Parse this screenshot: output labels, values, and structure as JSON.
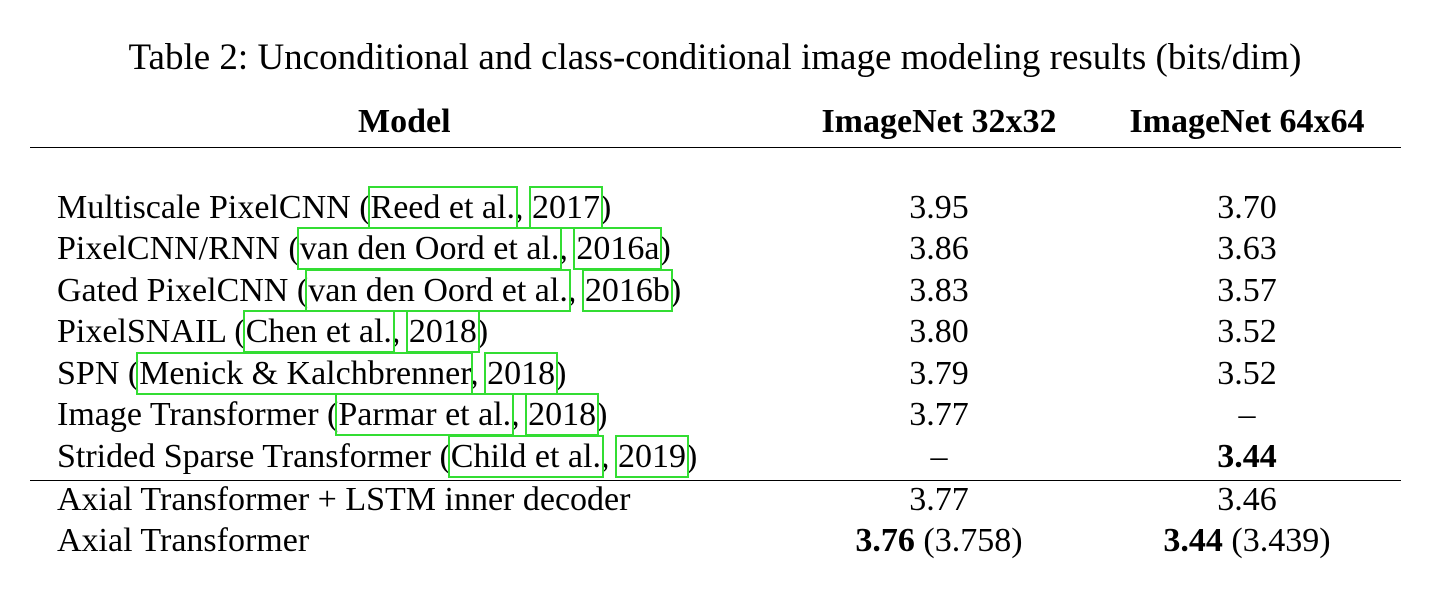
{
  "caption": "Table 2: Unconditional and class-conditional image modeling results (bits/dim)",
  "headers": {
    "model": "Model",
    "imagenet32": "ImageNet 32x32",
    "imagenet64": "ImageNet 64x64"
  },
  "rows": [
    {
      "name": "Multiscale PixelCNN (",
      "cite_authors": "Reed et al.",
      "sep": ", ",
      "cite_year": "2017",
      "close": ")",
      "in32": "3.95",
      "in64": "3.70"
    },
    {
      "name": "PixelCNN/RNN (",
      "cite_authors": "van den Oord et al.",
      "sep": ", ",
      "cite_year": "2016a",
      "close": ")",
      "in32": "3.86",
      "in64": "3.63"
    },
    {
      "name": "Gated PixelCNN (",
      "cite_authors": "van den Oord et al.",
      "sep": ", ",
      "cite_year": "2016b",
      "close": ")",
      "in32": "3.83",
      "in64": "3.57"
    },
    {
      "name": "PixelSNAIL (",
      "cite_authors": "Chen et al.",
      "sep": ", ",
      "cite_year": "2018",
      "close": ")",
      "in32": "3.80",
      "in64": "3.52"
    },
    {
      "name": "SPN (",
      "cite_authors": "Menick & Kalchbrenner",
      "sep": ", ",
      "cite_year": "2018",
      "close": ")",
      "in32": "3.79",
      "in64": "3.52"
    },
    {
      "name": "Image Transformer (",
      "cite_authors": "Parmar et al.",
      "sep": ", ",
      "cite_year": "2018",
      "close": ")",
      "in32": "3.77",
      "in64": "–"
    },
    {
      "name": "Strided Sparse Transformer (",
      "cite_authors": "Child et al.",
      "sep": ", ",
      "cite_year": "2019",
      "close": ")",
      "in32": "–",
      "in64": "3.44"
    }
  ],
  "ours": [
    {
      "name": "Axial Transformer + LSTM inner decoder",
      "in32": "3.77",
      "in64": "3.46"
    },
    {
      "name": "Axial Transformer",
      "in32_bold": "3.76",
      "in32_paren": " (3.758)",
      "in64_bold": "3.44",
      "in64_paren": " (3.439)"
    }
  ],
  "colors": {
    "citation_box": "#33dd33",
    "text": "#000000"
  }
}
